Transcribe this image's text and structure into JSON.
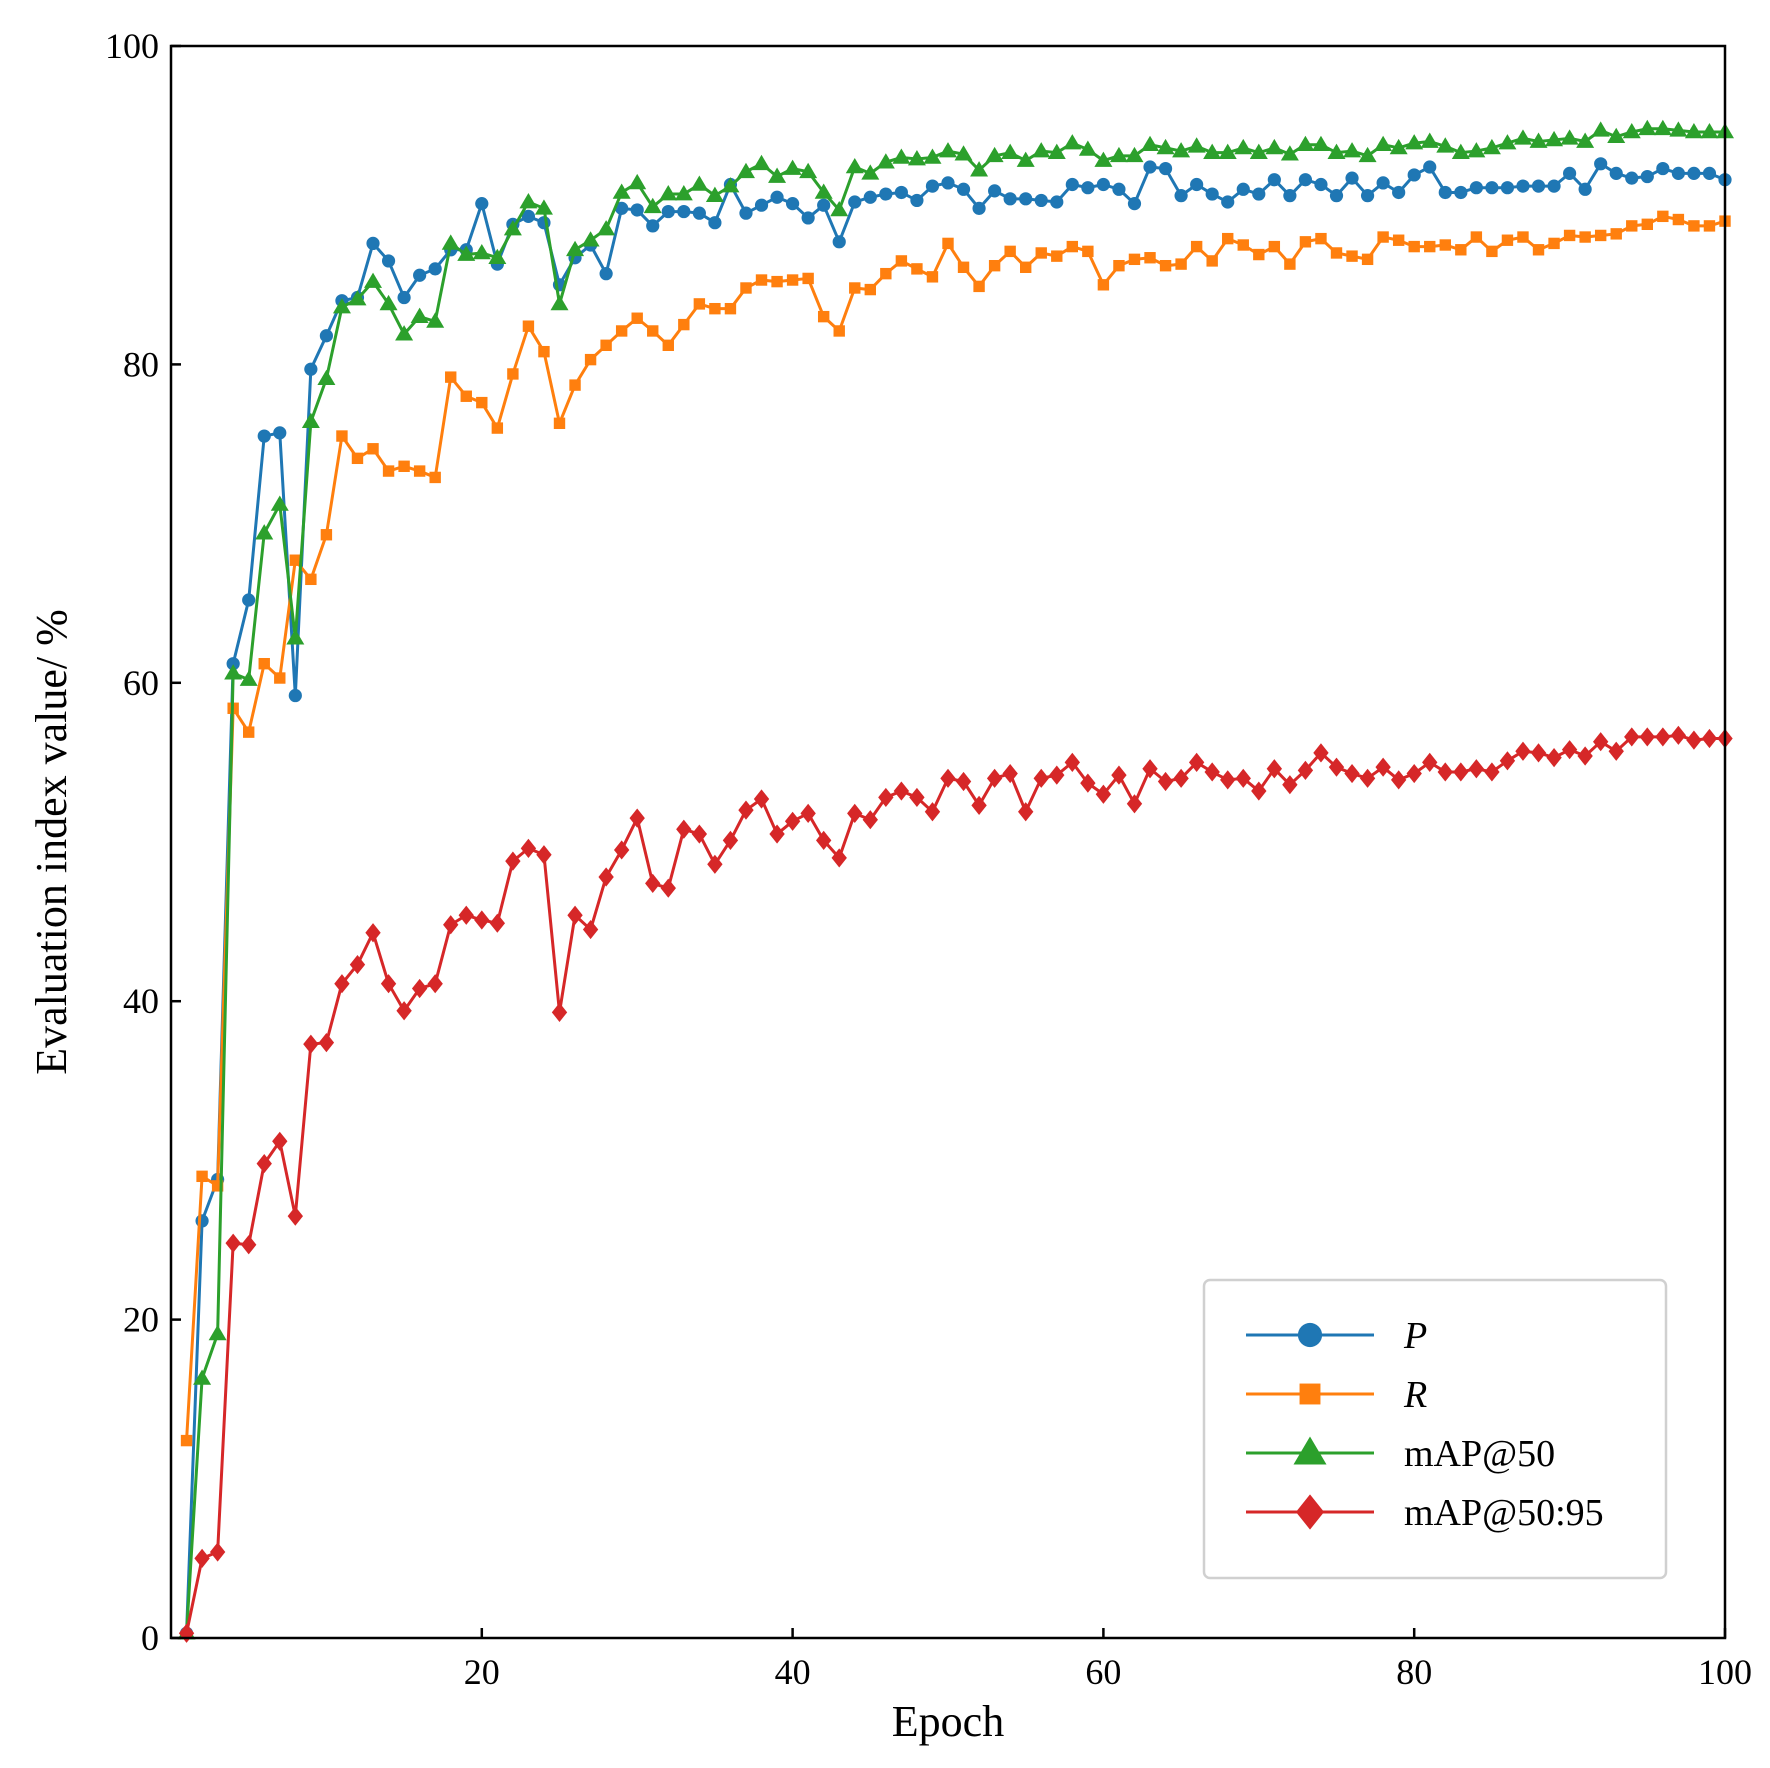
{
  "chart_data": {
    "type": "line",
    "xlabel": "Epoch",
    "ylabel": "Evaluation index value/ %",
    "xlim": [
      0,
      100
    ],
    "ylim": [
      0,
      100
    ],
    "xticks": [
      20,
      40,
      60,
      80,
      100
    ],
    "yticks": [
      0,
      20,
      40,
      60,
      80,
      100
    ],
    "legend_position": "bottom-right",
    "x": [
      1,
      2,
      3,
      4,
      5,
      6,
      7,
      8,
      9,
      10,
      11,
      12,
      13,
      14,
      15,
      16,
      17,
      18,
      19,
      20,
      21,
      22,
      23,
      24,
      25,
      26,
      27,
      28,
      29,
      30,
      31,
      32,
      33,
      34,
      35,
      36,
      37,
      38,
      39,
      40,
      41,
      42,
      43,
      44,
      45,
      46,
      47,
      48,
      49,
      50,
      51,
      52,
      53,
      54,
      55,
      56,
      57,
      58,
      59,
      60,
      61,
      62,
      63,
      64,
      65,
      66,
      67,
      68,
      69,
      70,
      71,
      72,
      73,
      74,
      75,
      76,
      77,
      78,
      79,
      80,
      81,
      82,
      83,
      84,
      85,
      86,
      87,
      88,
      89,
      90,
      91,
      92,
      93,
      94,
      95,
      96,
      97,
      98,
      99,
      100
    ],
    "series": [
      {
        "name": "P",
        "italic": true,
        "color": "#1f77b4",
        "marker": "circle",
        "values": [
          0.3,
          26.2,
          28.8,
          61.2,
          65.2,
          75.5,
          75.7,
          59.2,
          79.7,
          81.8,
          84.0,
          84.2,
          87.6,
          86.5,
          84.2,
          85.6,
          86.0,
          87.2,
          87.2,
          90.1,
          86.3,
          88.8,
          89.3,
          88.9,
          85.0,
          86.7,
          87.5,
          85.7,
          89.8,
          89.7,
          88.7,
          89.6,
          89.6,
          89.5,
          88.9,
          91.3,
          89.5,
          90.0,
          90.5,
          90.1,
          89.2,
          90.0,
          87.7,
          90.2,
          90.5,
          90.7,
          90.8,
          90.3,
          91.2,
          91.4,
          91.0,
          89.8,
          90.9,
          90.4,
          90.4,
          90.3,
          90.2,
          91.3,
          91.1,
          91.3,
          91.0,
          90.1,
          92.4,
          92.3,
          90.6,
          91.3,
          90.7,
          90.2,
          91.0,
          90.7,
          91.6,
          90.6,
          91.6,
          91.3,
          90.6,
          91.7,
          90.6,
          91.4,
          90.8,
          91.9,
          92.4,
          90.8,
          90.8,
          91.1,
          91.1,
          91.1,
          91.2,
          91.2,
          91.2,
          92.0,
          91.0,
          92.6,
          92.0,
          91.7,
          91.8,
          92.3,
          92.0,
          92.0,
          92.0,
          91.6
        ]
      },
      {
        "name": "R",
        "italic": true,
        "color": "#ff7f0e",
        "marker": "square",
        "values": [
          12.4,
          29.0,
          28.4,
          58.4,
          56.9,
          61.2,
          60.3,
          67.7,
          66.5,
          69.3,
          75.5,
          74.1,
          74.7,
          73.3,
          73.6,
          73.3,
          72.9,
          79.2,
          78.0,
          77.6,
          76.0,
          79.4,
          82.4,
          80.8,
          76.3,
          78.7,
          80.3,
          81.2,
          82.1,
          82.9,
          82.1,
          81.2,
          82.5,
          83.8,
          83.5,
          83.5,
          84.8,
          85.3,
          85.2,
          85.3,
          85.4,
          83.0,
          82.1,
          84.8,
          84.7,
          85.7,
          86.5,
          86.0,
          85.5,
          87.6,
          86.1,
          84.9,
          86.2,
          87.1,
          86.1,
          87.0,
          86.8,
          87.4,
          87.1,
          85.0,
          86.2,
          86.6,
          86.7,
          86.2,
          86.3,
          87.4,
          86.5,
          87.9,
          87.5,
          86.9,
          87.4,
          86.3,
          87.7,
          87.9,
          87.0,
          86.8,
          86.6,
          88.0,
          87.8,
          87.4,
          87.4,
          87.5,
          87.2,
          88.0,
          87.1,
          87.8,
          88.0,
          87.2,
          87.6,
          88.1,
          88.0,
          88.1,
          88.2,
          88.7,
          88.8,
          89.3,
          89.1,
          88.7,
          88.7,
          89.0
        ]
      },
      {
        "name": "mAP@50",
        "italic": false,
        "color": "#2ca02c",
        "marker": "triangle",
        "values": [
          0.3,
          16.3,
          19.1,
          60.6,
          60.2,
          69.4,
          71.2,
          62.8,
          76.4,
          79.1,
          83.6,
          84.1,
          85.2,
          83.8,
          81.9,
          83.0,
          82.7,
          87.6,
          86.9,
          87.0,
          86.7,
          88.5,
          90.2,
          89.8,
          83.8,
          87.2,
          87.8,
          88.5,
          90.8,
          91.4,
          89.9,
          90.7,
          90.7,
          91.3,
          90.6,
          91.2,
          92.1,
          92.6,
          91.8,
          92.3,
          92.1,
          90.8,
          89.7,
          92.4,
          92.0,
          92.7,
          93.0,
          92.9,
          93.0,
          93.4,
          93.2,
          92.2,
          93.1,
          93.3,
          92.8,
          93.4,
          93.3,
          93.9,
          93.5,
          92.8,
          93.1,
          93.1,
          93.8,
          93.6,
          93.4,
          93.7,
          93.3,
          93.3,
          93.6,
          93.3,
          93.6,
          93.2,
          93.8,
          93.8,
          93.3,
          93.4,
          93.1,
          93.8,
          93.6,
          93.9,
          94.0,
          93.7,
          93.3,
          93.4,
          93.6,
          93.9,
          94.2,
          94.0,
          94.1,
          94.2,
          94.0,
          94.7,
          94.3,
          94.6,
          94.8,
          94.8,
          94.7,
          94.6,
          94.6,
          94.6
        ]
      },
      {
        "name": "mAP@50:95",
        "italic": false,
        "color": "#d62728",
        "marker": "diamond",
        "values": [
          0.3,
          5.0,
          5.4,
          24.8,
          24.7,
          29.8,
          31.2,
          26.5,
          37.3,
          37.4,
          41.1,
          42.3,
          44.3,
          41.1,
          39.4,
          40.8,
          41.1,
          44.8,
          45.4,
          45.1,
          44.9,
          48.8,
          49.6,
          49.2,
          39.3,
          45.4,
          44.5,
          47.8,
          49.5,
          51.5,
          47.4,
          47.1,
          50.8,
          50.5,
          48.6,
          50.1,
          52.0,
          52.7,
          50.5,
          51.3,
          51.8,
          50.1,
          49.0,
          51.8,
          51.4,
          52.8,
          53.2,
          52.8,
          51.9,
          54.0,
          53.8,
          52.3,
          54.0,
          54.3,
          51.9,
          54.0,
          54.2,
          55.0,
          53.7,
          53.0,
          54.2,
          52.4,
          54.6,
          53.8,
          54.0,
          55.0,
          54.4,
          53.9,
          54.0,
          53.2,
          54.6,
          53.6,
          54.5,
          55.6,
          54.7,
          54.3,
          54.0,
          54.7,
          53.9,
          54.3,
          55.0,
          54.4,
          54.4,
          54.6,
          54.4,
          55.1,
          55.7,
          55.6,
          55.3,
          55.8,
          55.4,
          56.3,
          55.7,
          56.6,
          56.6,
          56.6,
          56.7,
          56.4,
          56.5,
          56.5
        ]
      }
    ]
  }
}
